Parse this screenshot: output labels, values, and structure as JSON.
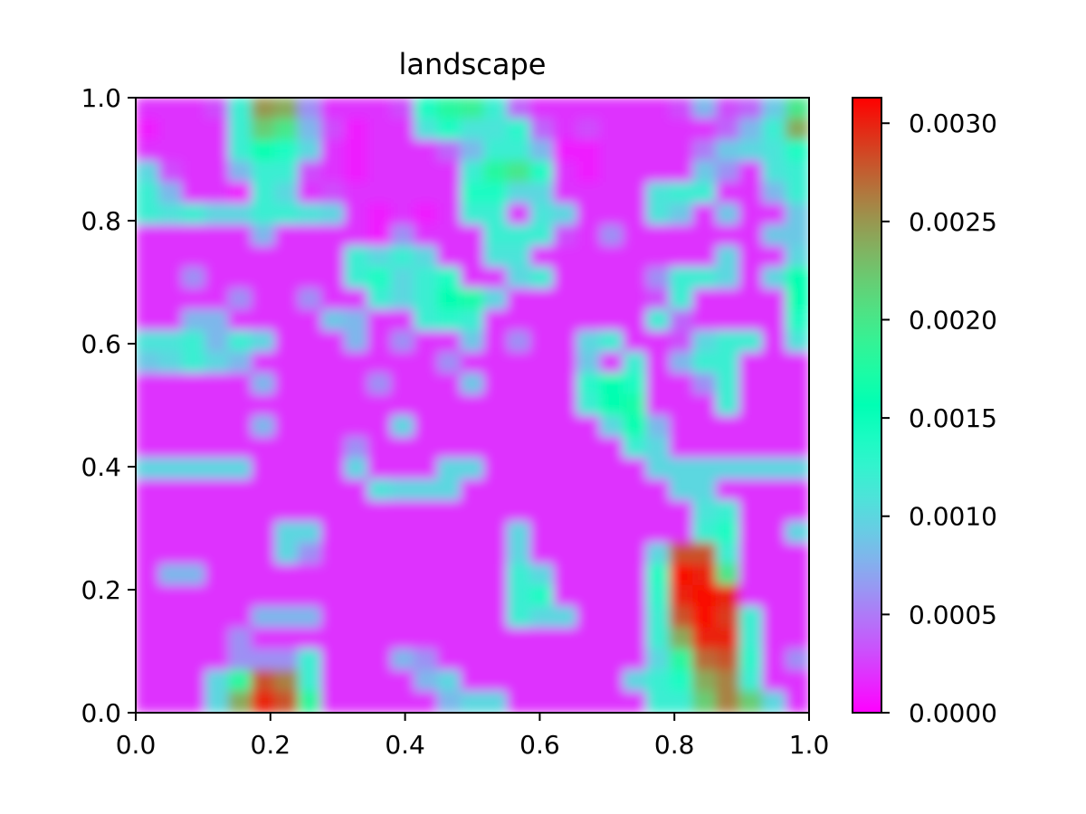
{
  "chart_data": {
    "type": "heatmap",
    "title": "landscape",
    "xlabel": "",
    "ylabel": "",
    "xlim": [
      0.0,
      1.0
    ],
    "ylim": [
      0.0,
      1.0
    ],
    "xticks": [
      "0.0",
      "0.2",
      "0.4",
      "0.6",
      "0.8",
      "1.0"
    ],
    "yticks": [
      "0.0",
      "0.2",
      "0.4",
      "0.6",
      "0.8",
      "1.0"
    ],
    "colormap": "rainbow",
    "colorbar": {
      "range": [
        0.0,
        0.00313
      ],
      "ticks": [
        "0.0000",
        "0.0005",
        "0.0010",
        "0.0015",
        "0.0020",
        "0.0025",
        "0.0030"
      ],
      "tick_values": [
        0.0,
        0.0005,
        0.001,
        0.0015,
        0.002,
        0.0025,
        0.003
      ]
    },
    "grid_note": "values in units of 1e-4, rows listed from y=1.0 (top) to y=0.0 (bottom), columns x=0.0 to 1.0",
    "z_scale": 0.0001,
    "z": [
      [
        2,
        2,
        2,
        3,
        12,
        25,
        24,
        6,
        2,
        2,
        2,
        3,
        14,
        18,
        19,
        12,
        4,
        2,
        2,
        2,
        2,
        2,
        2,
        3,
        8,
        3,
        4,
        9,
        20
      ],
      [
        1,
        2,
        2,
        2,
        12,
        22,
        20,
        8,
        3,
        1,
        2,
        2,
        11,
        14,
        11,
        11,
        13,
        4,
        2,
        3,
        2,
        2,
        2,
        2,
        2,
        4,
        8,
        12,
        24
      ],
      [
        2,
        2,
        2,
        2,
        12,
        16,
        14,
        10,
        2,
        1,
        2,
        2,
        2,
        4,
        8,
        12,
        12,
        8,
        1,
        1,
        2,
        2,
        2,
        2,
        5,
        9,
        10,
        11,
        14
      ],
      [
        10,
        3,
        2,
        2,
        8,
        12,
        12,
        3,
        2,
        1,
        2,
        2,
        2,
        2,
        12,
        18,
        20,
        14,
        2,
        1,
        2,
        2,
        2,
        2,
        9,
        6,
        2,
        11,
        12
      ],
      [
        12,
        8,
        2,
        2,
        1,
        12,
        10,
        2,
        3,
        2,
        2,
        2,
        2,
        2,
        14,
        14,
        10,
        10,
        2,
        2,
        2,
        2,
        11,
        12,
        12,
        2,
        2,
        8,
        12
      ],
      [
        12,
        11,
        12,
        10,
        10,
        12,
        12,
        11,
        10,
        2,
        1,
        2,
        1,
        2,
        12,
        12,
        2,
        11,
        10,
        2,
        2,
        2,
        11,
        9,
        2,
        9,
        2,
        2,
        9
      ],
      [
        2,
        2,
        2,
        2,
        2,
        8,
        2,
        2,
        2,
        2,
        1,
        6,
        2,
        2,
        2,
        12,
        12,
        12,
        3,
        2,
        6,
        2,
        2,
        2,
        2,
        2,
        2,
        9,
        9
      ],
      [
        2,
        2,
        2,
        2,
        2,
        2,
        2,
        2,
        2,
        12,
        10,
        12,
        10,
        2,
        2,
        11,
        11,
        2,
        2,
        2,
        2,
        2,
        2,
        2,
        2,
        10,
        2,
        2,
        10
      ],
      [
        2,
        2,
        6,
        2,
        2,
        2,
        2,
        2,
        2,
        12,
        14,
        10,
        12,
        14,
        2,
        2,
        10,
        12,
        2,
        2,
        2,
        2,
        6,
        12,
        12,
        10,
        2,
        10,
        16
      ],
      [
        2,
        2,
        2,
        2,
        6,
        2,
        2,
        6,
        2,
        2,
        12,
        10,
        12,
        16,
        17,
        10,
        2,
        2,
        2,
        2,
        2,
        2,
        3,
        12,
        2,
        2,
        2,
        2,
        16
      ],
      [
        2,
        2,
        8,
        8,
        2,
        2,
        2,
        2,
        9,
        8,
        2,
        2,
        12,
        13,
        12,
        2,
        2,
        2,
        2,
        2,
        2,
        2,
        12,
        4,
        2,
        2,
        2,
        2,
        14
      ],
      [
        11,
        11,
        12,
        8,
        12,
        10,
        2,
        2,
        2,
        8,
        2,
        6,
        2,
        2,
        9,
        2,
        6,
        2,
        2,
        10,
        12,
        2,
        2,
        3,
        10,
        12,
        12,
        2,
        11
      ],
      [
        9,
        10,
        12,
        10,
        8,
        2,
        2,
        2,
        2,
        2,
        2,
        2,
        2,
        6,
        2,
        2,
        2,
        2,
        2,
        9,
        2,
        12,
        2,
        8,
        12,
        12,
        2,
        2,
        2
      ],
      [
        2,
        2,
        2,
        2,
        2,
        8,
        2,
        2,
        2,
        2,
        6,
        2,
        2,
        2,
        9,
        2,
        2,
        2,
        2,
        13,
        16,
        14,
        2,
        2,
        6,
        12,
        2,
        2,
        2
      ],
      [
        2,
        2,
        2,
        2,
        2,
        2,
        2,
        2,
        2,
        2,
        2,
        2,
        2,
        2,
        2,
        2,
        2,
        2,
        2,
        12,
        16,
        17,
        2,
        2,
        2,
        12,
        2,
        2,
        2
      ],
      [
        2,
        2,
        2,
        2,
        2,
        8,
        2,
        2,
        2,
        2,
        2,
        10,
        2,
        2,
        2,
        2,
        2,
        2,
        2,
        2,
        10,
        16,
        8,
        2,
        2,
        2,
        2,
        2,
        2
      ],
      [
        2,
        2,
        2,
        2,
        2,
        2,
        2,
        2,
        2,
        6,
        2,
        2,
        2,
        2,
        2,
        2,
        2,
        2,
        2,
        2,
        2,
        12,
        10,
        2,
        2,
        2,
        2,
        2,
        2
      ],
      [
        10,
        10,
        10,
        10,
        10,
        2,
        2,
        2,
        2,
        10,
        2,
        2,
        2,
        10,
        10,
        2,
        2,
        2,
        2,
        2,
        2,
        2,
        10,
        10,
        10,
        10,
        10,
        10,
        10
      ],
      [
        2,
        2,
        2,
        2,
        2,
        2,
        2,
        2,
        2,
        2,
        11,
        10,
        10,
        10,
        2,
        2,
        2,
        2,
        2,
        2,
        2,
        2,
        2,
        10,
        10,
        2,
        2,
        2,
        2
      ],
      [
        2,
        2,
        2,
        2,
        2,
        2,
        2,
        2,
        2,
        2,
        2,
        2,
        2,
        2,
        2,
        2,
        2,
        2,
        2,
        2,
        2,
        2,
        2,
        2,
        11,
        12,
        2,
        2,
        2
      ],
      [
        2,
        2,
        2,
        2,
        2,
        2,
        10,
        10,
        2,
        2,
        2,
        2,
        2,
        2,
        2,
        2,
        10,
        2,
        2,
        2,
        2,
        2,
        2,
        2,
        12,
        14,
        2,
        2,
        10
      ],
      [
        2,
        2,
        2,
        2,
        2,
        2,
        10,
        6,
        2,
        2,
        2,
        2,
        2,
        2,
        2,
        2,
        10,
        2,
        2,
        2,
        2,
        2,
        10,
        28,
        28,
        12,
        2,
        2,
        2
      ],
      [
        2,
        8,
        8,
        2,
        2,
        2,
        2,
        2,
        2,
        2,
        2,
        2,
        2,
        2,
        2,
        2,
        12,
        10,
        2,
        2,
        2,
        2,
        14,
        31,
        30,
        20,
        2,
        2,
        2
      ],
      [
        2,
        2,
        2,
        2,
        2,
        2,
        2,
        2,
        2,
        2,
        2,
        2,
        2,
        2,
        2,
        2,
        12,
        14,
        2,
        2,
        2,
        2,
        13,
        30,
        31,
        30,
        2,
        2,
        2
      ],
      [
        2,
        2,
        2,
        2,
        2,
        8,
        8,
        8,
        2,
        2,
        2,
        2,
        2,
        2,
        2,
        2,
        12,
        10,
        10,
        2,
        2,
        2,
        12,
        28,
        31,
        29,
        12,
        2,
        2
      ],
      [
        2,
        2,
        2,
        2,
        6,
        2,
        2,
        2,
        2,
        2,
        2,
        2,
        2,
        2,
        2,
        2,
        2,
        2,
        2,
        2,
        2,
        2,
        12,
        24,
        30,
        30,
        12,
        2,
        2
      ],
      [
        2,
        2,
        2,
        2,
        6,
        6,
        6,
        12,
        2,
        2,
        2,
        8,
        6,
        2,
        2,
        2,
        2,
        2,
        2,
        2,
        2,
        2,
        10,
        18,
        27,
        28,
        13,
        2,
        6
      ],
      [
        2,
        2,
        2,
        10,
        18,
        28,
        26,
        12,
        2,
        2,
        2,
        2,
        8,
        10,
        2,
        2,
        2,
        2,
        2,
        2,
        2,
        10,
        12,
        14,
        24,
        26,
        12,
        2,
        2
      ],
      [
        2,
        2,
        2,
        10,
        24,
        30,
        28,
        18,
        2,
        2,
        2,
        2,
        2,
        8,
        10,
        10,
        2,
        2,
        2,
        2,
        2,
        2,
        12,
        12,
        22,
        26,
        22,
        10,
        2
      ]
    ]
  }
}
